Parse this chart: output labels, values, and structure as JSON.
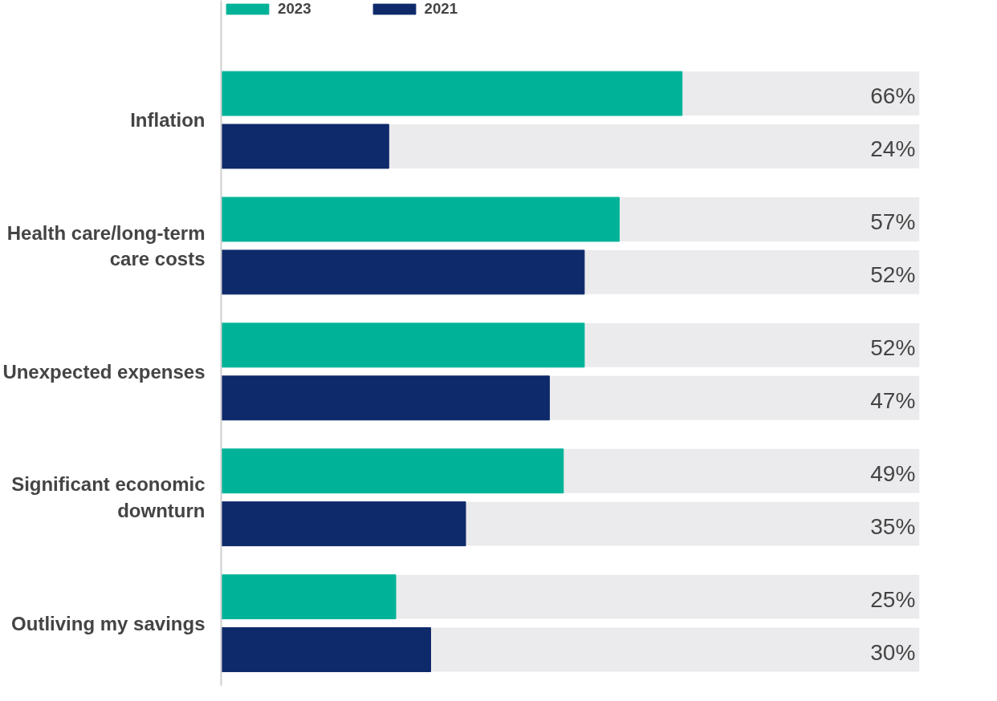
{
  "chart_data": {
    "type": "bar",
    "orientation": "horizontal",
    "categories": [
      "Inflation",
      "Health care/long-term care costs",
      "Unexpected expenses",
      "Significant economic downturn",
      "Outliving my savings"
    ],
    "series": [
      {
        "name": "2023",
        "color": "#00b398",
        "values": [
          66,
          57,
          52,
          49,
          25
        ],
        "value_labels": [
          "66%",
          "57%",
          "52%",
          "49%",
          "25%"
        ]
      },
      {
        "name": "2021",
        "color": "#0f2a6b",
        "values": [
          24,
          52,
          47,
          35,
          30
        ],
        "value_labels": [
          "24%",
          "52%",
          "47%",
          "35%",
          "30%"
        ]
      }
    ],
    "xlim": [
      0,
      100
    ],
    "legend": "top left",
    "grid": false,
    "tick_labels": "y"
  }
}
